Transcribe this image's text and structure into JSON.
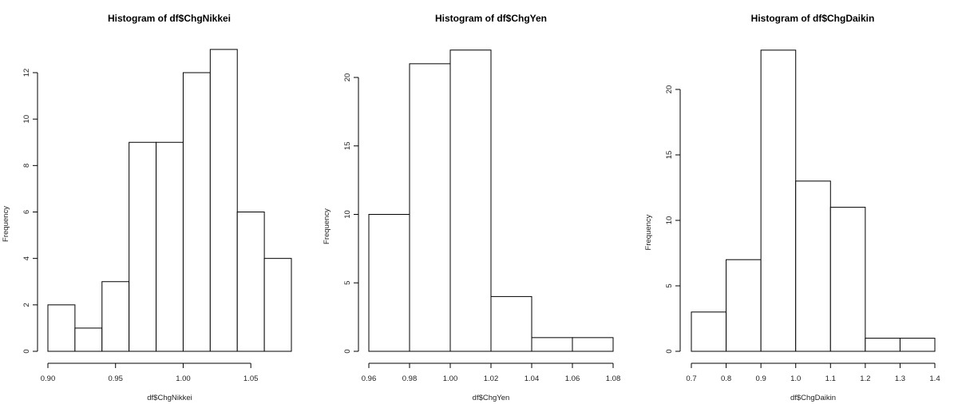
{
  "chart_data": [
    {
      "type": "bar",
      "title": "Histogram of df$ChgNikkei",
      "xlabel": "df$ChgNikkei",
      "ylabel": "Frequency",
      "bin_edges": [
        0.9,
        0.92,
        0.94,
        0.96,
        0.98,
        1.0,
        1.02,
        1.04,
        1.06,
        1.08
      ],
      "values": [
        2,
        1,
        3,
        9,
        9,
        12,
        13,
        6,
        4
      ],
      "xticks": [
        "0.90",
        "0.95",
        "1.00",
        "1.05"
      ],
      "xtick_values": [
        0.9,
        0.95,
        1.0,
        1.05
      ],
      "yticks": [
        "0",
        "2",
        "4",
        "6",
        "8",
        "10",
        "12"
      ],
      "ytick_values": [
        0,
        2,
        4,
        6,
        8,
        10,
        12
      ],
      "xlim": [
        0.9,
        1.08
      ],
      "ylim": [
        0,
        13
      ],
      "grid": false
    },
    {
      "type": "bar",
      "title": "Histogram of df$ChgYen",
      "xlabel": "df$ChgYen",
      "ylabel": "Frequency",
      "bin_edges": [
        0.96,
        0.98,
        1.0,
        1.02,
        1.04,
        1.06,
        1.08
      ],
      "values": [
        10,
        21,
        22,
        4,
        1,
        1
      ],
      "xticks": [
        "0.96",
        "0.98",
        "1.00",
        "1.02",
        "1.04",
        "1.06",
        "1.08"
      ],
      "xtick_values": [
        0.96,
        0.98,
        1.0,
        1.02,
        1.04,
        1.06,
        1.08
      ],
      "yticks": [
        "0",
        "5",
        "10",
        "15",
        "20"
      ],
      "ytick_values": [
        0,
        5,
        10,
        15,
        20
      ],
      "xlim": [
        0.96,
        1.08
      ],
      "ylim": [
        0,
        22
      ],
      "grid": false
    },
    {
      "type": "bar",
      "title": "Histogram of df$ChgDaikin",
      "xlabel": "df$ChgDaikin",
      "ylabel": "Frequency",
      "bin_edges": [
        0.7,
        0.8,
        0.9,
        1.0,
        1.1,
        1.2,
        1.3,
        1.4
      ],
      "values": [
        3,
        7,
        23,
        13,
        11,
        1,
        1
      ],
      "xticks": [
        "0.7",
        "0.8",
        "0.9",
        "1.0",
        "1.1",
        "1.2",
        "1.3",
        "1.4"
      ],
      "xtick_values": [
        0.7,
        0.8,
        0.9,
        1.0,
        1.1,
        1.2,
        1.3,
        1.4
      ],
      "yticks": [
        "0",
        "5",
        "10",
        "15",
        "20"
      ],
      "ytick_values": [
        0,
        5,
        10,
        15,
        20
      ],
      "xlim": [
        0.7,
        1.4
      ],
      "ylim": [
        0,
        23
      ],
      "grid": false
    }
  ]
}
